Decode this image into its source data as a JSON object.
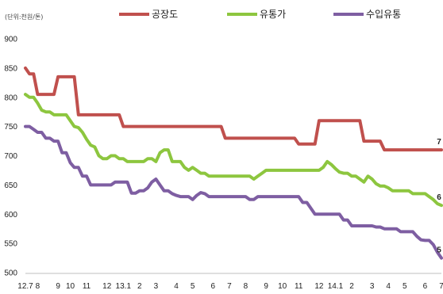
{
  "chart_data": {
    "type": "line",
    "unit_label": "(단위:천원/톤)",
    "ylim": [
      500,
      900
    ],
    "yticks": [
      500,
      550,
      600,
      650,
      700,
      750,
      800,
      850,
      900
    ],
    "x_tick_labels": [
      {
        "i": 0,
        "label": "12.7"
      },
      {
        "i": 3,
        "label": "8"
      },
      {
        "i": 8,
        "label": "9"
      },
      {
        "i": 11,
        "label": "10"
      },
      {
        "i": 15,
        "label": "11"
      },
      {
        "i": 20,
        "label": "12"
      },
      {
        "i": 24,
        "label": "13.1"
      },
      {
        "i": 28,
        "label": "2"
      },
      {
        "i": 32,
        "label": "3"
      },
      {
        "i": 37,
        "label": "4"
      },
      {
        "i": 41,
        "label": "5"
      },
      {
        "i": 46,
        "label": "6"
      },
      {
        "i": 50,
        "label": "7"
      },
      {
        "i": 54,
        "label": "8"
      },
      {
        "i": 59,
        "label": "9"
      },
      {
        "i": 63,
        "label": "10"
      },
      {
        "i": 67,
        "label": "11"
      },
      {
        "i": 72,
        "label": "12"
      },
      {
        "i": 76,
        "label": "14.1"
      },
      {
        "i": 80,
        "label": "2"
      },
      {
        "i": 85,
        "label": "3"
      },
      {
        "i": 89,
        "label": "4"
      },
      {
        "i": 93,
        "label": "5"
      },
      {
        "i": 98,
        "label": "6"
      },
      {
        "i": 102,
        "label": "7"
      }
    ],
    "legend_position": "top",
    "series": [
      {
        "name": "공장도",
        "color": "#c0504d",
        "end_label": "7",
        "values": [
          850,
          840,
          840,
          805,
          805,
          805,
          805,
          805,
          835,
          835,
          835,
          835,
          835,
          770,
          770,
          770,
          770,
          770,
          770,
          770,
          770,
          770,
          770,
          770,
          750,
          750,
          750,
          750,
          750,
          750,
          750,
          750,
          750,
          750,
          750,
          750,
          750,
          750,
          750,
          750,
          750,
          750,
          750,
          750,
          750,
          750,
          750,
          750,
          750,
          730,
          730,
          730,
          730,
          730,
          730,
          730,
          730,
          730,
          730,
          730,
          730,
          730,
          730,
          730,
          730,
          730,
          730,
          720,
          720,
          720,
          720,
          720,
          760,
          760,
          760,
          760,
          760,
          760,
          760,
          760,
          760,
          760,
          760,
          725,
          725,
          725,
          725,
          725,
          710,
          710,
          710,
          710,
          710,
          710,
          710,
          710,
          710,
          710,
          710,
          710,
          710,
          710,
          710
        ]
      },
      {
        "name": "유통가",
        "color": "#8dc63f",
        "end_label": "6",
        "values": [
          805,
          800,
          800,
          790,
          778,
          775,
          775,
          770,
          770,
          770,
          770,
          760,
          750,
          748,
          740,
          728,
          718,
          715,
          700,
          695,
          695,
          700,
          700,
          695,
          695,
          690,
          690,
          690,
          690,
          690,
          695,
          695,
          690,
          705,
          710,
          710,
          690,
          690,
          690,
          680,
          675,
          680,
          675,
          670,
          670,
          665,
          665,
          665,
          665,
          665,
          665,
          665,
          665,
          665,
          665,
          665,
          660,
          665,
          670,
          675,
          675,
          675,
          675,
          675,
          675,
          675,
          675,
          675,
          675,
          675,
          675,
          675,
          675,
          680,
          690,
          685,
          678,
          672,
          670,
          670,
          665,
          665,
          660,
          655,
          665,
          660,
          652,
          648,
          648,
          645,
          640,
          640,
          640,
          640,
          640,
          635,
          635,
          635,
          635,
          630,
          625,
          618,
          615
        ]
      },
      {
        "name": "수입유통",
        "color": "#7e5ea2",
        "end_label": "5",
        "values": [
          750,
          750,
          745,
          740,
          740,
          730,
          730,
          725,
          725,
          705,
          705,
          688,
          680,
          680,
          665,
          665,
          650,
          650,
          650,
          650,
          650,
          650,
          655,
          655,
          655,
          655,
          636,
          636,
          640,
          640,
          645,
          655,
          660,
          650,
          640,
          640,
          635,
          632,
          630,
          630,
          630,
          625,
          632,
          637,
          635,
          630,
          630,
          630,
          630,
          630,
          630,
          630,
          630,
          630,
          630,
          625,
          625,
          630,
          630,
          630,
          630,
          630,
          630,
          630,
          630,
          630,
          630,
          630,
          620,
          620,
          610,
          600,
          600,
          600,
          600,
          600,
          600,
          600,
          590,
          590,
          580,
          580,
          580,
          580,
          580,
          580,
          578,
          578,
          575,
          575,
          575,
          575,
          570,
          570,
          570,
          570,
          562,
          556,
          555,
          555,
          548,
          535,
          525
        ]
      }
    ]
  }
}
